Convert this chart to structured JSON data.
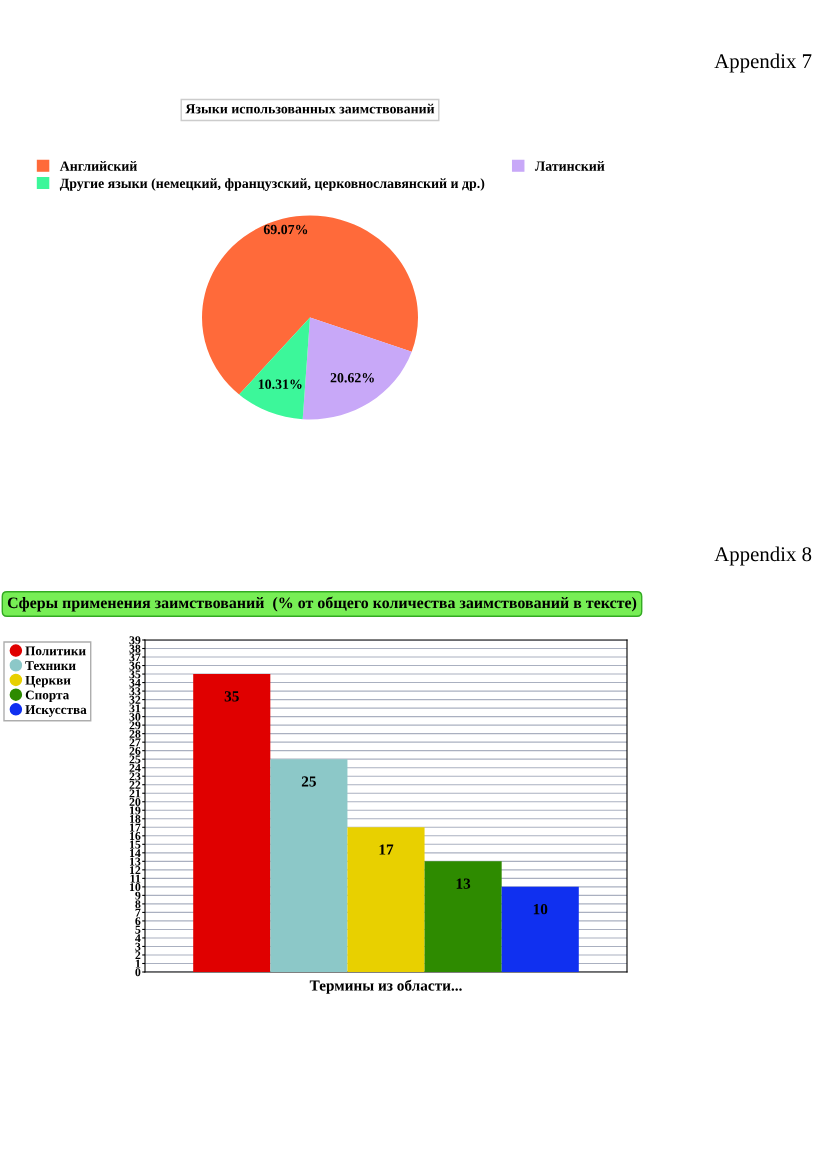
{
  "chart_data": [
    {
      "type": "pie",
      "title": "Языки использованных заимствований",
      "annotations": [
        "Appendix 7"
      ],
      "categories": [
        "Английский",
        "Латинский",
        "Другие языки (немецкий, французский, церковнославянский и др.)"
      ],
      "values": [
        69.07,
        20.62,
        10.31
      ],
      "colors": [
        "#ff6a3a",
        "#c8a8f8",
        "#3cf79a"
      ],
      "value_labels": [
        "69.07%",
        "20.62%",
        "10.31%"
      ],
      "legend": "top"
    },
    {
      "type": "bar",
      "title": "Сферы применения заимствований  (% от общего количества заимствований в тексте)",
      "annotations": [
        "Appendix 8"
      ],
      "xlabel": "Термины из области...",
      "categories": [
        null
      ],
      "series": [
        {
          "name": "Политики",
          "color": "#e00000",
          "values": [
            35
          ]
        },
        {
          "name": "Техники",
          "color": "#8cc8c8",
          "values": [
            25
          ]
        },
        {
          "name": "Церкви",
          "color": "#e8d000",
          "values": [
            17
          ]
        },
        {
          "name": "Спорта",
          "color": "#2e8b00",
          "values": [
            13
          ]
        },
        {
          "name": "Искусства",
          "color": "#1030f0",
          "values": [
            10
          ]
        }
      ],
      "ylim": [
        0,
        39
      ],
      "yticks": [
        0,
        1,
        2,
        3,
        4,
        5,
        6,
        7,
        8,
        9,
        10,
        11,
        12,
        13,
        14,
        15,
        16,
        17,
        18,
        19,
        20,
        21,
        22,
        23,
        24,
        25,
        26,
        27,
        28,
        29,
        30,
        31,
        32,
        33,
        34,
        35,
        36,
        37,
        38,
        39
      ],
      "grid": "y",
      "data_labels": true,
      "legend": "left"
    }
  ]
}
